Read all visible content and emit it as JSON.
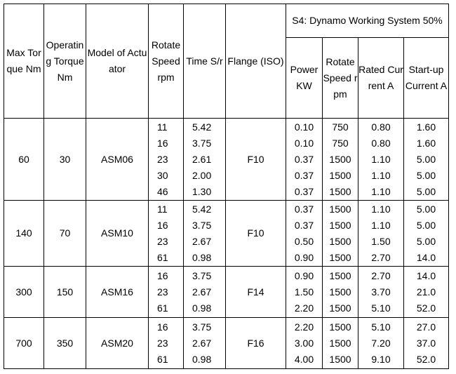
{
  "headers": {
    "max_torque": "Max Torque Nm",
    "operating_torque": "Operating Torque Nm",
    "model": "Model of Actuator",
    "rotate_speed": "Rotate Speed rpm",
    "time": "Time S/r",
    "flange": "Flange (ISO)",
    "s4_group": "S4: Dynamo Working System 50%",
    "power": "Power KW",
    "s4_rotate_speed": "Rotate Speed rpm",
    "rated_current": "Rated Current A",
    "startup_current": "Start-up Current A"
  },
  "groups": [
    {
      "max_torque": "60",
      "operating_torque": "30",
      "model": "ASM06",
      "flange": "F10",
      "rows": [
        {
          "speed": "11",
          "time": "5.42",
          "power": "0.10",
          "s4_speed": "750",
          "rated": "0.80",
          "startup": "1.60"
        },
        {
          "speed": "16",
          "time": "3.75",
          "power": "0.10",
          "s4_speed": "750",
          "rated": "0.80",
          "startup": "1.60"
        },
        {
          "speed": "23",
          "time": "2.61",
          "power": "0.37",
          "s4_speed": "1500",
          "rated": "1.10",
          "startup": "5.00"
        },
        {
          "speed": "30",
          "time": "2.00",
          "power": "0.37",
          "s4_speed": "1500",
          "rated": "1.10",
          "startup": "5.00"
        },
        {
          "speed": "46",
          "time": "1.30",
          "power": "0.37",
          "s4_speed": "1500",
          "rated": "1.10",
          "startup": "5.00"
        }
      ]
    },
    {
      "max_torque": "140",
      "operating_torque": "70",
      "model": "ASM10",
      "flange": "F10",
      "rows": [
        {
          "speed": "11",
          "time": "5.42",
          "power": "0.37",
          "s4_speed": "1500",
          "rated": "1.10",
          "startup": "5.00"
        },
        {
          "speed": "16",
          "time": "3.75",
          "power": "0.37",
          "s4_speed": "1500",
          "rated": "1.10",
          "startup": "5.00"
        },
        {
          "speed": "23",
          "time": "2.67",
          "power": "0.50",
          "s4_speed": "1500",
          "rated": "1.50",
          "startup": "5.00"
        },
        {
          "speed": "61",
          "time": "0.98",
          "power": "0.90",
          "s4_speed": "1500",
          "rated": "2.70",
          "startup": "14.0"
        }
      ]
    },
    {
      "max_torque": "300",
      "operating_torque": "150",
      "model": "ASM16",
      "flange": "F14",
      "rows": [
        {
          "speed": "16",
          "time": "3.75",
          "power": "0.90",
          "s4_speed": "1500",
          "rated": "2.70",
          "startup": "14.0"
        },
        {
          "speed": "23",
          "time": "2.67",
          "power": "1.50",
          "s4_speed": "1500",
          "rated": "3.70",
          "startup": "21.0"
        },
        {
          "speed": "61",
          "time": "0.98",
          "power": "2.20",
          "s4_speed": "1500",
          "rated": "5.10",
          "startup": "52.0"
        }
      ]
    },
    {
      "max_torque": "700",
      "operating_torque": "350",
      "model": "ASM20",
      "flange": "F16",
      "rows": [
        {
          "speed": "16",
          "time": "3.75",
          "power": "2.20",
          "s4_speed": "1500",
          "rated": "5.10",
          "startup": "27.0"
        },
        {
          "speed": "23",
          "time": "2.67",
          "power": "3.00",
          "s4_speed": "1500",
          "rated": "7.20",
          "startup": "37.0"
        },
        {
          "speed": "61",
          "time": "0.98",
          "power": "4.00",
          "s4_speed": "1500",
          "rated": "9.10",
          "startup": "52.0"
        }
      ]
    }
  ]
}
